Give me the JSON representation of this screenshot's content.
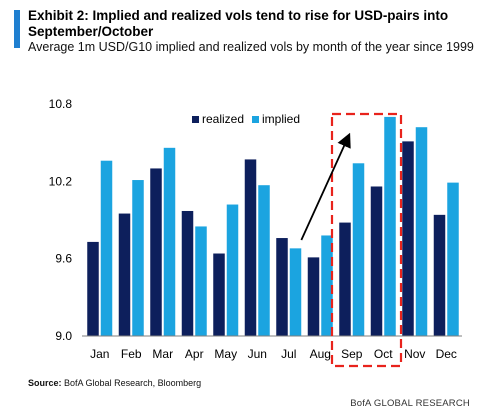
{
  "header": {
    "title": "Exhibit 2: Implied and realized vols tend to rise for USD-pairs into September/October",
    "subtitle": "Average 1m USD/G10 implied and realized vols by month of the year since 1999"
  },
  "footer": {
    "source_label": "Source:",
    "source_text": "BofA Global Research, Bloomberg",
    "brand": "BofA GLOBAL RESEARCH"
  },
  "colors": {
    "accent": "#1f7fd0",
    "realized": "#0d1f5c",
    "implied": "#1ba4e0",
    "highlight": "#e8231c",
    "axis": "#7f7f7f"
  },
  "chart_data": {
    "type": "bar",
    "categories": [
      "Jan",
      "Feb",
      "Mar",
      "Apr",
      "May",
      "Jun",
      "Jul",
      "Aug",
      "Sep",
      "Oct",
      "Nov",
      "Dec"
    ],
    "series": [
      {
        "name": "realized",
        "values": [
          9.73,
          9.95,
          10.3,
          9.97,
          9.64,
          10.37,
          9.76,
          9.61,
          9.88,
          10.16,
          10.51,
          9.94
        ]
      },
      {
        "name": "implied",
        "values": [
          10.36,
          10.21,
          10.46,
          9.85,
          10.02,
          10.17,
          9.68,
          9.78,
          10.34,
          10.7,
          10.62,
          10.19
        ]
      }
    ],
    "yticks": [
      "10.8",
      "10.2",
      "9.6",
      "9.0"
    ],
    "ylim": [
      9.0,
      10.8
    ],
    "legend_position": "top",
    "grid": false,
    "highlight_categories": [
      "Sep",
      "Oct"
    ]
  }
}
